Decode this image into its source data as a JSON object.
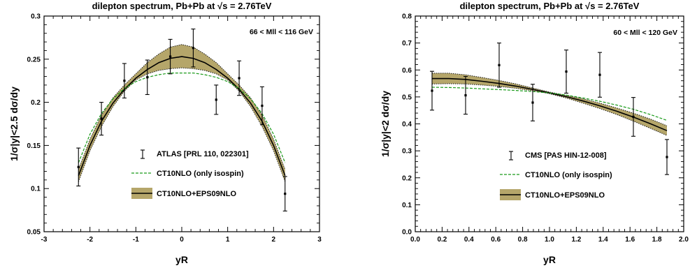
{
  "chart_data": [
    {
      "type": "line",
      "title": "dilepton spectrum, Pb+Pb at √s = 2.76TeV",
      "xlabel": "yR",
      "ylabel": "1/σ|y|<2.5 dσ/dy",
      "annotation": "66 < Mll < 116 GeV",
      "xlim": [
        -3,
        3
      ],
      "ylim": [
        0.05,
        0.3
      ],
      "xticks": [
        "-3",
        "-2",
        "-1",
        "0",
        "1",
        "2",
        "3"
      ],
      "yticks": [
        "0.05",
        "0.1",
        "0.15",
        "0.2",
        "0.25",
        "0.3"
      ],
      "legend_placement": "lower-center",
      "legend": [
        "ATLAS [PRL 110, 022301]",
        "CT10NLO (only isospin)",
        "CT10NLO+EPS09NLO"
      ],
      "points": {
        "name": "ATLAS [PRL 110, 022301]",
        "x": [
          -2.25,
          -1.75,
          -1.25,
          -0.75,
          -0.25,
          0.25,
          0.75,
          1.25,
          1.75,
          2.25
        ],
        "y": [
          0.125,
          0.181,
          0.225,
          0.229,
          0.253,
          0.263,
          0.203,
          0.228,
          0.196,
          0.094
        ],
        "err": [
          0.022,
          0.019,
          0.02,
          0.02,
          0.02,
          0.022,
          0.017,
          0.02,
          0.022,
          0.02
        ]
      },
      "series": [
        {
          "name": "CT10NLO+EPS09NLO",
          "x": [
            -2.25,
            -2.0,
            -1.75,
            -1.5,
            -1.25,
            -1.0,
            -0.75,
            -0.5,
            -0.25,
            0.0,
            0.25,
            0.5,
            0.75,
            1.0,
            1.25,
            1.5,
            1.75,
            2.0,
            2.25
          ],
          "y": [
            0.115,
            0.15,
            0.178,
            0.199,
            0.215,
            0.228,
            0.238,
            0.246,
            0.251,
            0.253,
            0.251,
            0.246,
            0.238,
            0.228,
            0.215,
            0.199,
            0.178,
            0.15,
            0.115
          ],
          "band_low": [
            0.108,
            0.144,
            0.172,
            0.195,
            0.213,
            0.226,
            0.233,
            0.237,
            0.239,
            0.24,
            0.239,
            0.237,
            0.233,
            0.226,
            0.213,
            0.195,
            0.172,
            0.144,
            0.108
          ],
          "band_high": [
            0.122,
            0.157,
            0.185,
            0.205,
            0.22,
            0.233,
            0.246,
            0.256,
            0.264,
            0.267,
            0.264,
            0.256,
            0.246,
            0.233,
            0.22,
            0.205,
            0.185,
            0.157,
            0.122
          ]
        },
        {
          "name": "CT10NLO (only isospin)",
          "x": [
            -2.25,
            -2.0,
            -1.75,
            -1.5,
            -1.25,
            -1.0,
            -0.75,
            -0.5,
            -0.25,
            0.0,
            0.25,
            0.5,
            0.75,
            1.0,
            1.25,
            1.5,
            1.75,
            2.0,
            2.25
          ],
          "y": [
            0.13,
            0.163,
            0.187,
            0.204,
            0.216,
            0.224,
            0.229,
            0.232,
            0.234,
            0.234,
            0.234,
            0.232,
            0.229,
            0.224,
            0.216,
            0.204,
            0.187,
            0.163,
            0.13
          ]
        }
      ]
    },
    {
      "type": "line",
      "title": "dilepton spectrum, Pb+Pb at √s = 2.76TeV",
      "xlabel": "yR",
      "ylabel": "1/σ|y|<2 dσ/dy",
      "annotation": "60 < Mll < 120 GeV",
      "xlim": [
        0,
        2
      ],
      "ylim": [
        0,
        0.8
      ],
      "xticks": [
        "0.0",
        "0.2",
        "0.4",
        "0.6",
        "0.8",
        "1.0",
        "1.2",
        "1.4",
        "1.6",
        "1.8",
        "2.0"
      ],
      "yticks": [
        "0.0",
        "0.1",
        "0.2",
        "0.3",
        "0.4",
        "0.5",
        "0.6",
        "0.7",
        "0.8"
      ],
      "legend_placement": "lower-left",
      "legend": [
        "CMS [PAS HIN-12-008]",
        "CT10NLO (only isospin)",
        "CT10NLO+EPS09NLO"
      ],
      "points": {
        "name": "CMS [PAS HIN-12-008]",
        "x": [
          0.125,
          0.375,
          0.625,
          0.875,
          1.125,
          1.375,
          1.625,
          1.875
        ],
        "y": [
          0.523,
          0.506,
          0.618,
          0.479,
          0.594,
          0.582,
          0.426,
          0.277
        ],
        "err": [
          0.072,
          0.07,
          0.082,
          0.068,
          0.08,
          0.083,
          0.072,
          0.065
        ]
      },
      "series": [
        {
          "name": "CT10NLO+EPS09NLO",
          "x": [
            0.125,
            0.25,
            0.375,
            0.5,
            0.625,
            0.75,
            0.875,
            1.0,
            1.125,
            1.25,
            1.375,
            1.5,
            1.625,
            1.75,
            1.875
          ],
          "y": [
            0.568,
            0.568,
            0.565,
            0.558,
            0.55,
            0.54,
            0.528,
            0.515,
            0.501,
            0.485,
            0.467,
            0.447,
            0.425,
            0.401,
            0.375
          ],
          "band_low": [
            0.548,
            0.549,
            0.548,
            0.544,
            0.539,
            0.532,
            0.523,
            0.512,
            0.496,
            0.477,
            0.457,
            0.435,
            0.41,
            0.384,
            0.357
          ],
          "band_high": [
            0.588,
            0.588,
            0.582,
            0.572,
            0.561,
            0.548,
            0.533,
            0.518,
            0.506,
            0.493,
            0.477,
            0.459,
            0.44,
            0.418,
            0.393
          ]
        },
        {
          "name": "CT10NLO (only isospin)",
          "x": [
            0.125,
            0.25,
            0.375,
            0.5,
            0.625,
            0.75,
            0.875,
            1.0,
            1.125,
            1.25,
            1.375,
            1.5,
            1.625,
            1.75,
            1.875
          ],
          "y": [
            0.536,
            0.535,
            0.533,
            0.53,
            0.527,
            0.524,
            0.52,
            0.515,
            0.507,
            0.496,
            0.484,
            0.47,
            0.454,
            0.435,
            0.413
          ]
        }
      ]
    }
  ],
  "colors": {
    "band_fill": "#b5a66a",
    "band_edge": "#1a1a1a",
    "central_line": "#000000",
    "isospin_line": "#1a9a1a",
    "points": "#000000"
  }
}
